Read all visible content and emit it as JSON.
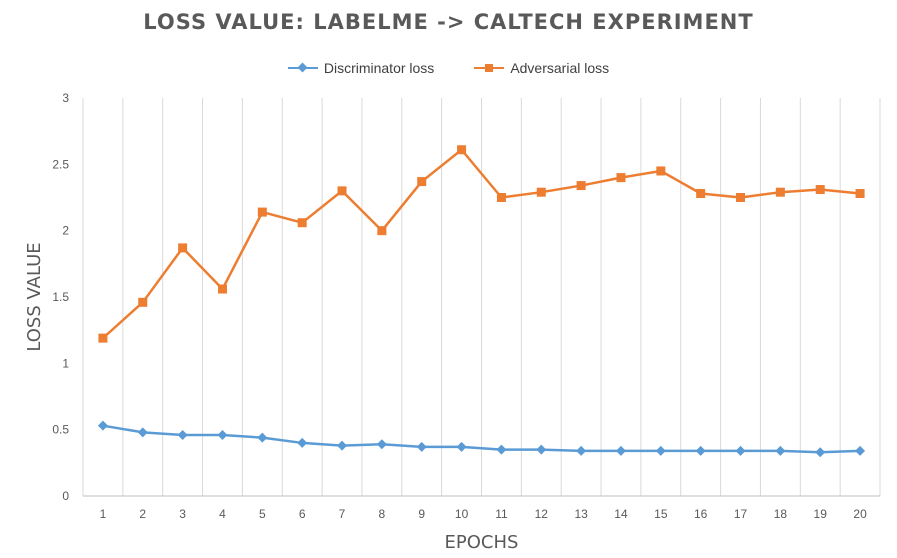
{
  "chart_data": {
    "type": "line",
    "title": "LOSS VALUE: LABELME -> CALTECH EXPERIMENT",
    "xlabel": "EPOCHS",
    "ylabel": "LOSS VALUE",
    "x": [
      1,
      2,
      3,
      4,
      5,
      6,
      7,
      8,
      9,
      10,
      11,
      12,
      13,
      14,
      15,
      16,
      17,
      18,
      19,
      20
    ],
    "x_tick_labels": [
      "1",
      "2",
      "3",
      "4",
      "5",
      "6",
      "7",
      "8",
      "9",
      "10",
      "11",
      "12",
      "13",
      "14",
      "15",
      "16",
      "17",
      "18",
      "19",
      "20"
    ],
    "ylim": [
      0,
      3
    ],
    "y_ticks": [
      0,
      0.5,
      1,
      1.5,
      2,
      2.5,
      3
    ],
    "y_tick_labels": [
      "0",
      "0.5",
      "1",
      "1.5",
      "2",
      "2.5",
      "3"
    ],
    "grid": "vertical",
    "legend_position": "top",
    "series": [
      {
        "name": "Discriminator loss",
        "color": "#5b9bd5",
        "marker": "diamond",
        "values": [
          0.53,
          0.48,
          0.46,
          0.46,
          0.44,
          0.4,
          0.38,
          0.39,
          0.37,
          0.37,
          0.35,
          0.35,
          0.34,
          0.34,
          0.34,
          0.34,
          0.34,
          0.34,
          0.33,
          0.34
        ]
      },
      {
        "name": "Adversarial loss",
        "color": "#ed7d31",
        "marker": "square",
        "values": [
          1.19,
          1.46,
          1.87,
          1.56,
          2.14,
          2.06,
          2.3,
          2.0,
          2.37,
          2.61,
          2.25,
          2.29,
          2.34,
          2.4,
          2.45,
          2.28,
          2.25,
          2.29,
          2.31,
          2.28
        ]
      }
    ]
  }
}
